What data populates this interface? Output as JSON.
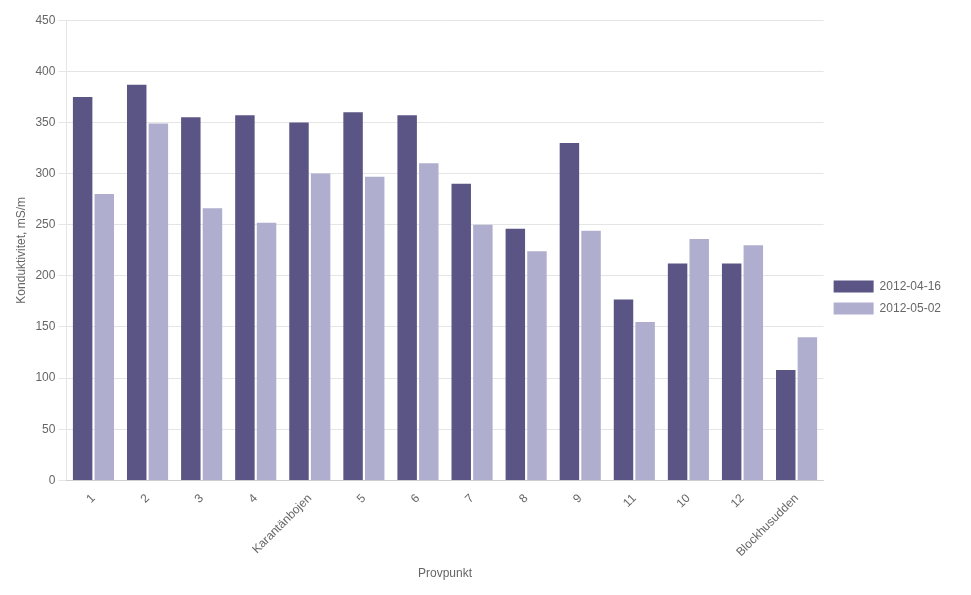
{
  "chart_data": {
    "type": "bar",
    "xlabel": "Provpunkt",
    "ylabel": "Konduktivitet, mS/m",
    "categories": [
      "1",
      "2",
      "3",
      "4",
      "Karantänbojen",
      "5",
      "6",
      "7",
      "8",
      "9",
      "11",
      "10",
      "12",
      "Blockhusudden"
    ],
    "series": [
      {
        "name": "2012-04-16",
        "color": "#5B5585",
        "values": [
          375,
          387,
          355,
          357,
          350,
          360,
          357,
          290,
          246,
          330,
          177,
          212,
          212,
          108
        ]
      },
      {
        "name": "2012-05-02",
        "color": "#B0AECE",
        "values": [
          280,
          349,
          266,
          252,
          300,
          297,
          310,
          250,
          224,
          244,
          155,
          236,
          230,
          140
        ]
      }
    ],
    "ylim": [
      0,
      450
    ],
    "yticks": [
      0,
      50,
      100,
      150,
      200,
      250,
      300,
      350,
      400,
      450
    ],
    "grid": true,
    "legend": "right"
  }
}
